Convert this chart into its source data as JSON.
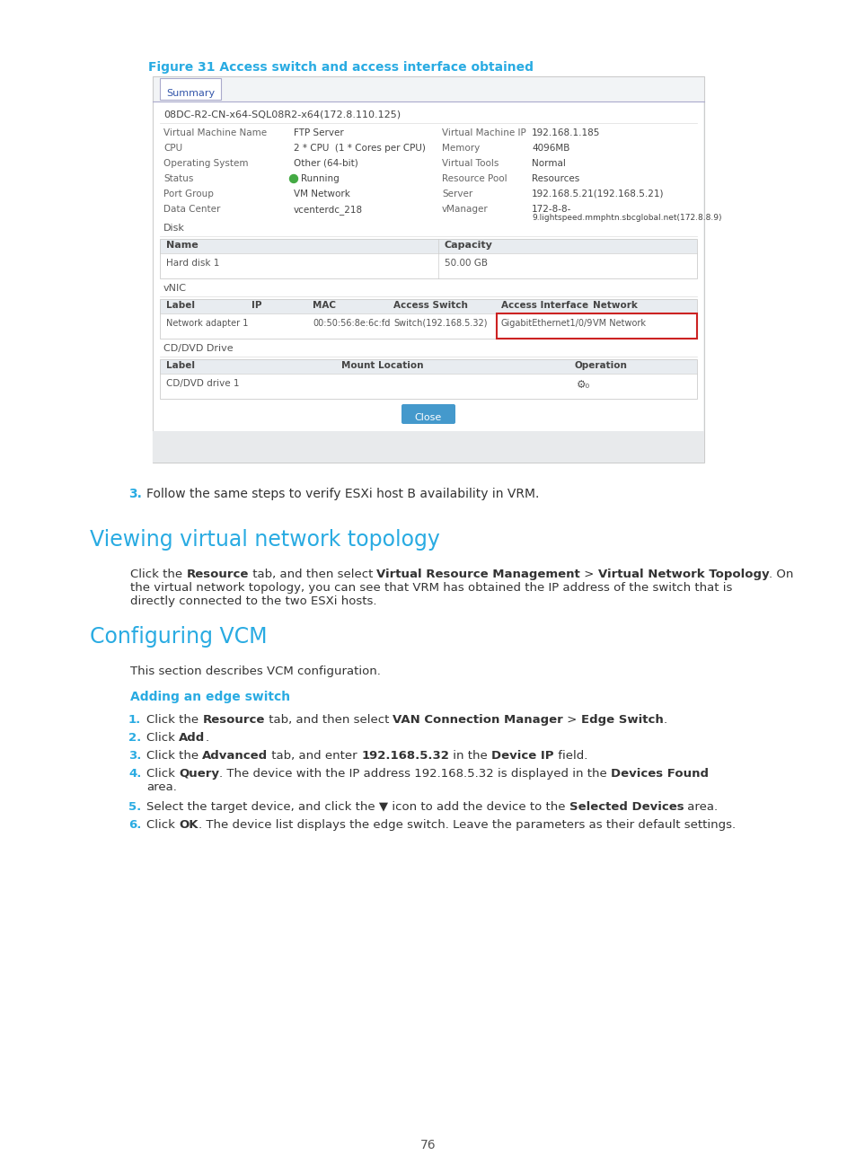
{
  "bg_color": "#ffffff",
  "page_number": "76",
  "figure_caption": "Figure 31 Access switch and access interface obtained",
  "figure_caption_color": "#29abe2",
  "section1_title": "Viewing virtual network topology",
  "section1_color": "#29abe2",
  "section2_title": "Configuring VCM",
  "section2_color": "#29abe2",
  "section2_intro": "This section describes VCM configuration.",
  "subsection_title": "Adding an edge switch",
  "subsection_color": "#29abe2",
  "tab_label": "Summary",
  "vm_id": "08DC-R2-CN-x64-SQL08R2-x64(172.8.110.125)",
  "vm_left_labels": [
    "Virtual Machine Name",
    "CPU",
    "Operating System",
    "Status",
    "Port Group",
    "Data Center"
  ],
  "vm_left_values": [
    "FTP Server",
    "2 * CPU  (1 * Cores per CPU)",
    "Other (64-bit)",
    "Running",
    "VM Network",
    "vcenterdc_218"
  ],
  "vm_right_labels": [
    "Virtual Machine IP",
    "Memory",
    "Virtual Tools",
    "Resource Pool",
    "Server",
    "vManager"
  ],
  "vm_right_values": [
    "192.168.1.185",
    "4096MB",
    "Normal",
    "Resources",
    "192.168.5.21(192.168.5.21)",
    "172-8-8-\n9.lightspeed.mmphtn.sbcglobal.net(172.8.8.9)"
  ],
  "disk_row": [
    "Hard disk 1",
    "50.00 GB"
  ],
  "vnic_row": [
    "Network adapter 1",
    "",
    "00:50:56:8e:6c:fd",
    "Switch(192.168.5.32)",
    "GigabitEthernet1/0/9",
    "VM Network"
  ],
  "cddvd_row": [
    "CD/DVD drive 1"
  ],
  "close_btn": "Close",
  "step_outside": "Follow the same steps to verify ESXi host B availability in VRM.",
  "s1_line2": "the virtual network topology, you can see that VRM has obtained the IP address of the switch that is",
  "s1_line3": "directly connected to the two ESXi hosts.",
  "step4_line2": "area.",
  "step6_suf": ". The device list displays the edge switch. Leave the parameters as their default settings."
}
